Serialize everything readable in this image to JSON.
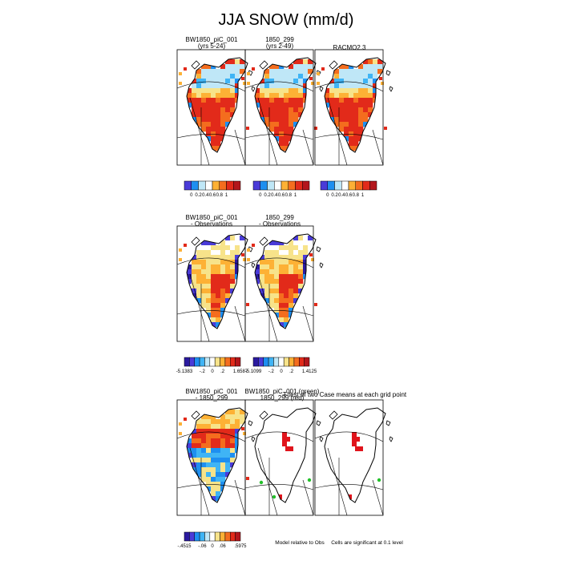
{
  "title": "JJA SNOW (mm/d)",
  "colors": {
    "scale_11": [
      "#2b1aa0",
      "#4a3bd8",
      "#1e8ff0",
      "#3fb4f5",
      "#bfe7f7",
      "#ffffff",
      "#f7e38a",
      "#fdb135",
      "#f46d1e",
      "#e22a1a",
      "#b3161c"
    ],
    "scale_8": [
      "#4a3bd8",
      "#1e8ff0",
      "#bfe7f7",
      "#ffffff",
      "#fdb135",
      "#f46d1e",
      "#e22a1a",
      "#b3161c"
    ],
    "scale_6": [
      "#2b1aa0",
      "#1e8ff0",
      "#bfe7f7",
      "#fdb135",
      "#f46d1e",
      "#d8241c"
    ],
    "sig_red": "#e0141c",
    "sig_green": "#22c02a"
  },
  "chart_data": [
    {
      "type": "heatmap",
      "panel": "row1-1",
      "title": "BW1850_piC_001",
      "subtitle": "(yrs 5-24)",
      "colorbar": {
        "ticks": [
          "0",
          "0.2",
          "0.4",
          "0.6",
          "0.8",
          "1"
        ]
      }
    },
    {
      "type": "heatmap",
      "panel": "row1-2",
      "title": "1850_299",
      "subtitle": "(yrs 2-49)",
      "colorbar": {
        "ticks": [
          "0",
          "0.2",
          "0.4",
          "0.6",
          "0.8",
          "1"
        ]
      }
    },
    {
      "type": "heatmap",
      "panel": "row1-3",
      "title": "RACMO2.3",
      "colorbar": {
        "ticks": [
          "0",
          "0.2",
          "0.4",
          "0.6",
          "0.8",
          "1"
        ]
      }
    },
    {
      "type": "heatmap",
      "panel": "row2-1",
      "title": "BW1850_piC_001",
      "subtitle": "- Observations",
      "colorbar": {
        "ticks": [
          "-5.1383",
          "-.2",
          "0",
          ".2",
          "1.6587"
        ]
      }
    },
    {
      "type": "heatmap",
      "panel": "row2-2",
      "title": "1850_299",
      "subtitle": "- Observations",
      "colorbar": {
        "ticks": [
          "-5.1099",
          "-.2",
          "0",
          ".2",
          "1.4125"
        ]
      }
    },
    {
      "type": "heatmap",
      "panel": "row3-1",
      "title": "BW1850_piC_001",
      "subtitle": "- 1850_299",
      "colorbar": {
        "ticks": [
          "-.4515",
          "-.06",
          "0",
          ".06",
          ".5975"
        ]
      }
    },
    {
      "type": "heatmap",
      "panel": "row3-2",
      "title": "BW1850_piC_001 (green)",
      "subtitle": "1850_299 (red)",
      "note": "Model relative to Obs"
    },
    {
      "type": "heatmap",
      "panel": "row3-3",
      "title": "T-test of two Case means at each grid point",
      "note": "Cells are significant at 0.1 level"
    }
  ]
}
